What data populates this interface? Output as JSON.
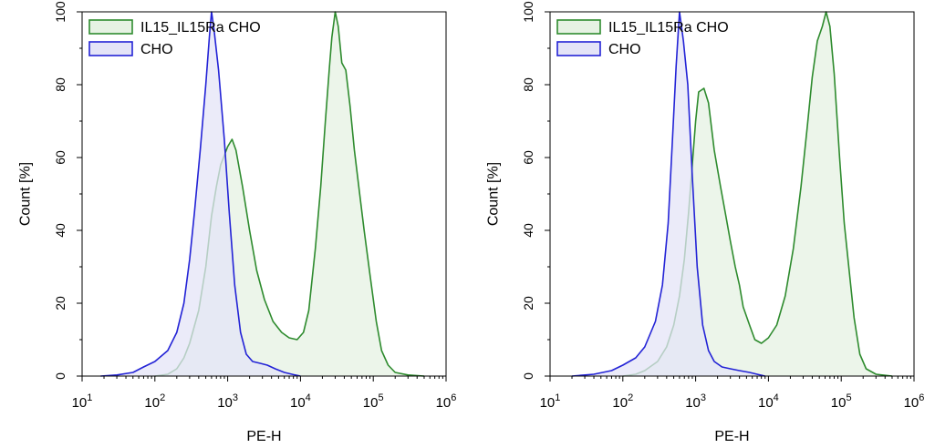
{
  "chart_data": [
    {
      "type": "area",
      "xlabel": "PE-H",
      "ylabel": "Count [%]",
      "x_scale": "log10",
      "xlim": [
        10,
        1000000
      ],
      "ylim": [
        0,
        100
      ],
      "x_ticks": [
        {
          "base": "10",
          "exp": "1"
        },
        {
          "base": "10",
          "exp": "2"
        },
        {
          "base": "10",
          "exp": "3"
        },
        {
          "base": "10",
          "exp": "4"
        },
        {
          "base": "10",
          "exp": "5"
        },
        {
          "base": "10",
          "exp": "6"
        }
      ],
      "y_ticks": [
        "0",
        "20",
        "40",
        "60",
        "80",
        "100"
      ],
      "legend_position": "top-left",
      "series": [
        {
          "name": "IL15_IL15Ra CHO",
          "line_color": "#2e8b2e",
          "fill_color": "#e6f2e3",
          "points": [
            [
              100,
              0
            ],
            [
              150,
              0.5
            ],
            [
              200,
              2
            ],
            [
              250,
              5
            ],
            [
              300,
              9
            ],
            [
              400,
              18
            ],
            [
              500,
              30
            ],
            [
              600,
              44
            ],
            [
              700,
              52
            ],
            [
              800,
              58
            ],
            [
              1000,
              63
            ],
            [
              1150,
              65
            ],
            [
              1300,
              62
            ],
            [
              1600,
              52
            ],
            [
              2000,
              40
            ],
            [
              2500,
              29
            ],
            [
              3200,
              21
            ],
            [
              4200,
              15
            ],
            [
              5500,
              12
            ],
            [
              7000,
              10.5
            ],
            [
              9000,
              10
            ],
            [
              11000,
              12
            ],
            [
              13000,
              18
            ],
            [
              16000,
              35
            ],
            [
              19000,
              52
            ],
            [
              22000,
              70
            ],
            [
              25000,
              85
            ],
            [
              27000,
              93
            ],
            [
              30000,
              100
            ],
            [
              33000,
              96
            ],
            [
              37000,
              86
            ],
            [
              42000,
              84
            ],
            [
              48000,
              74
            ],
            [
              55000,
              62
            ],
            [
              65000,
              50
            ],
            [
              75000,
              40
            ],
            [
              90000,
              28
            ],
            [
              110000,
              15
            ],
            [
              130000,
              7
            ],
            [
              160000,
              3
            ],
            [
              200000,
              1
            ],
            [
              300000,
              0.3
            ],
            [
              500000,
              0
            ]
          ]
        },
        {
          "name": "CHO",
          "line_color": "#2323d6",
          "fill_color": "#e4e4f7",
          "points": [
            [
              18,
              0
            ],
            [
              30,
              0.3
            ],
            [
              50,
              1
            ],
            [
              70,
              2.5
            ],
            [
              100,
              4
            ],
            [
              150,
              7
            ],
            [
              200,
              12
            ],
            [
              250,
              20
            ],
            [
              300,
              32
            ],
            [
              350,
              45
            ],
            [
              420,
              62
            ],
            [
              500,
              80
            ],
            [
              560,
              93
            ],
            [
              600,
              100
            ],
            [
              650,
              95
            ],
            [
              750,
              84
            ],
            [
              900,
              65
            ],
            [
              1050,
              45
            ],
            [
              1250,
              25
            ],
            [
              1500,
              12
            ],
            [
              1800,
              6
            ],
            [
              2200,
              4
            ],
            [
              2800,
              3.5
            ],
            [
              3500,
              3
            ],
            [
              4500,
              2
            ],
            [
              6000,
              1
            ],
            [
              8000,
              0.4
            ],
            [
              10000,
              0
            ]
          ]
        }
      ]
    },
    {
      "type": "area",
      "xlabel": "PE-H",
      "ylabel": "Count [%]",
      "x_scale": "log10",
      "xlim": [
        10,
        1000000
      ],
      "ylim": [
        0,
        100
      ],
      "x_ticks": [
        {
          "base": "10",
          "exp": "1"
        },
        {
          "base": "10",
          "exp": "2"
        },
        {
          "base": "10",
          "exp": "3"
        },
        {
          "base": "10",
          "exp": "4"
        },
        {
          "base": "10",
          "exp": "5"
        },
        {
          "base": "10",
          "exp": "6"
        }
      ],
      "y_ticks": [
        "0",
        "20",
        "40",
        "60",
        "80",
        "100"
      ],
      "legend_position": "top-left",
      "series": [
        {
          "name": "IL15_IL15Ra CHO",
          "line_color": "#2e8b2e",
          "fill_color": "#e6f2e3",
          "points": [
            [
              100,
              0
            ],
            [
              150,
              0.5
            ],
            [
              200,
              1.5
            ],
            [
              300,
              4
            ],
            [
              400,
              8
            ],
            [
              500,
              14
            ],
            [
              600,
              22
            ],
            [
              700,
              32
            ],
            [
              800,
              45
            ],
            [
              900,
              58
            ],
            [
              1000,
              70
            ],
            [
              1100,
              78
            ],
            [
              1300,
              79
            ],
            [
              1500,
              75
            ],
            [
              1800,
              62
            ],
            [
              2200,
              52
            ],
            [
              2600,
              44
            ],
            [
              3000,
              37
            ],
            [
              3500,
              30
            ],
            [
              4000,
              25
            ],
            [
              4500,
              19
            ],
            [
              5500,
              14
            ],
            [
              6500,
              10
            ],
            [
              8000,
              9
            ],
            [
              10000,
              10.5
            ],
            [
              13000,
              14
            ],
            [
              17000,
              22
            ],
            [
              22000,
              35
            ],
            [
              28000,
              52
            ],
            [
              34000,
              68
            ],
            [
              40000,
              82
            ],
            [
              47000,
              92
            ],
            [
              55000,
              96
            ],
            [
              62000,
              100
            ],
            [
              70000,
              96
            ],
            [
              80000,
              83
            ],
            [
              95000,
              60
            ],
            [
              110000,
              42
            ],
            [
              130000,
              28
            ],
            [
              150000,
              16
            ],
            [
              180000,
              6
            ],
            [
              220000,
              2
            ],
            [
              300000,
              0.5
            ],
            [
              500000,
              0
            ]
          ]
        },
        {
          "name": "CHO",
          "line_color": "#2323d6",
          "fill_color": "#e4e4f7",
          "points": [
            [
              20,
              0
            ],
            [
              40,
              0.5
            ],
            [
              70,
              1.5
            ],
            [
              100,
              3
            ],
            [
              150,
              5
            ],
            [
              200,
              8
            ],
            [
              280,
              15
            ],
            [
              350,
              25
            ],
            [
              420,
              42
            ],
            [
              480,
              65
            ],
            [
              540,
              85
            ],
            [
              600,
              100
            ],
            [
              680,
              92
            ],
            [
              780,
              80
            ],
            [
              900,
              55
            ],
            [
              1050,
              30
            ],
            [
              1250,
              14
            ],
            [
              1500,
              7
            ],
            [
              1800,
              4
            ],
            [
              2300,
              2.5
            ],
            [
              3000,
              2
            ],
            [
              4000,
              1.5
            ],
            [
              5500,
              1
            ],
            [
              7000,
              0.5
            ],
            [
              9000,
              0
            ]
          ]
        }
      ]
    }
  ]
}
